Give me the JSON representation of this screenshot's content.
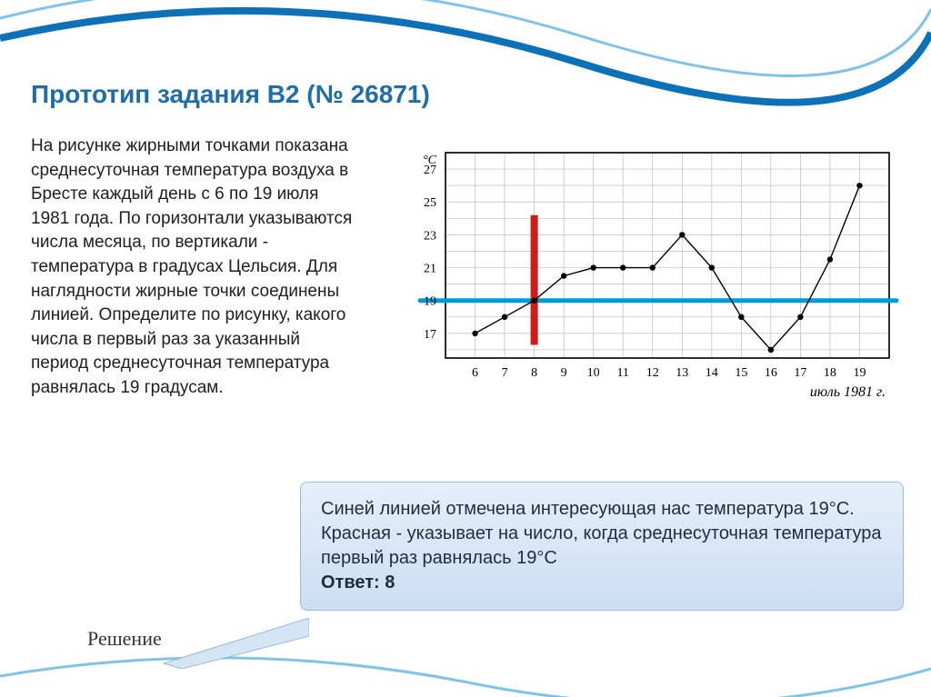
{
  "title": "Прототип задания B2 (№ 26871)",
  "body": "На рисунке жирными точками показана среднесуточная температура воздуха в Бресте каждый день с 6 по 19 июля 1981 года. По горизонтали указываются числа месяца, по вертикали - температура в градусах Цельсия. Для наглядности жирные точки соединены линией. Определите по рисунку, какого числа в первый раз за указанный период среднесуточная температура равнялась 19 градусам.",
  "callout": {
    "text": "Синей линией отмечена интересующая нас температура 19°C. Красная - указывает на число, когда среднесуточная температура первый раз равнялась 19°C",
    "answer_label": "Ответ:",
    "answer_value": "8"
  },
  "solution_label": "Решение",
  "chart": {
    "type": "line",
    "x_values": [
      6,
      7,
      8,
      9,
      10,
      11,
      12,
      13,
      14,
      15,
      16,
      17,
      18,
      19
    ],
    "y_values": [
      17,
      18,
      19,
      20.5,
      21,
      21,
      21,
      23,
      21,
      18,
      16,
      18,
      21.5,
      26
    ],
    "y_unit": "°C",
    "x_caption": "июль 1981 г.",
    "x_tick_labels": [
      "6",
      "7",
      "8",
      "9",
      "10",
      "11",
      "12",
      "13",
      "14",
      "15",
      "16",
      "17",
      "18",
      "19"
    ],
    "y_tick_labels": [
      "17",
      "19",
      "21",
      "23",
      "25",
      "27"
    ],
    "y_tick_values": [
      17,
      19,
      21,
      23,
      25,
      27
    ],
    "xlim": [
      6,
      19
    ],
    "ylim": [
      15.5,
      28
    ],
    "grid_color": "#bdbdbd",
    "border_color": "#000000",
    "line_color": "#000000",
    "line_width": 1.4,
    "marker_color": "#000000",
    "marker_radius": 3.2,
    "blue_line_y": 19,
    "blue_line_color": "#0099dd",
    "blue_line_width": 5,
    "red_line_x": 8,
    "red_line_color": "#d11a1a",
    "red_line_width": 8,
    "background_color": "#ffffff",
    "tick_font_size": 14,
    "unit_font_size": 14,
    "caption_font_style": "italic"
  },
  "decoration": {
    "arc_color_dark": "#0c71b7",
    "arc_color_light": "#7fc4e8"
  }
}
